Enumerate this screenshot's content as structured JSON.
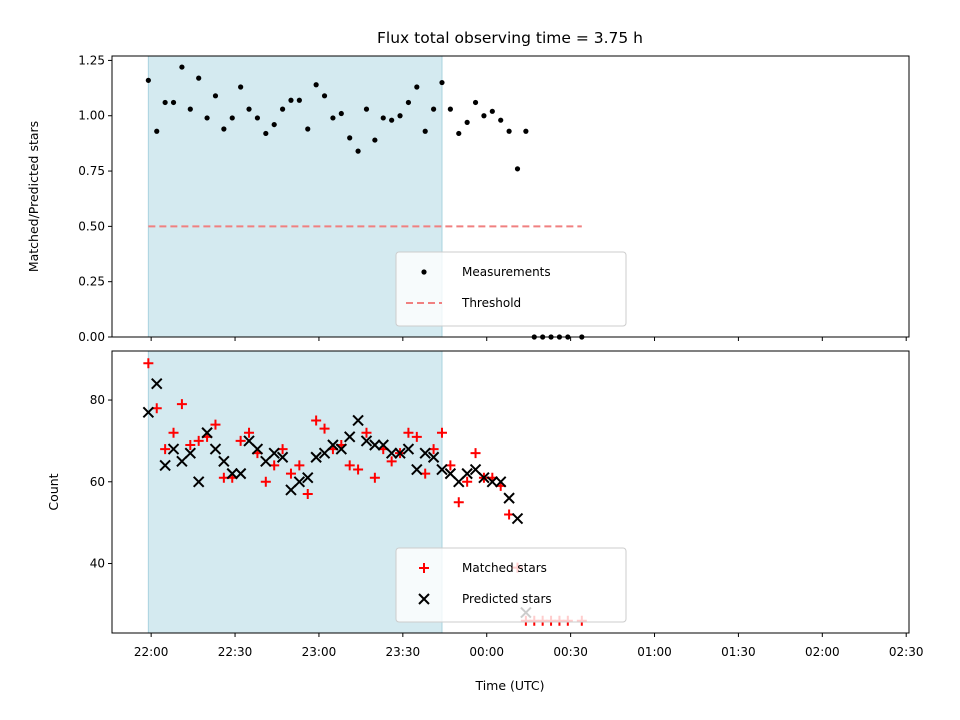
{
  "chart_data": {
    "title": "Flux total observing time = 3.75 h",
    "observing_window": [
      "21:59",
      "23:44"
    ],
    "x_ticks": [
      "22:00",
      "22:30",
      "23:00",
      "23:30",
      "00:00",
      "00:30",
      "01:00",
      "01:30",
      "02:00",
      "02:30"
    ],
    "x_range": [
      "21:46",
      "02:31"
    ],
    "x_label": "Time (UTC)",
    "colors": {
      "window": "#d4eaf0",
      "window_edge": "#a9d3df",
      "measurements": "#000000",
      "threshold": "#f08080",
      "matched": "#ff0000",
      "predicted": "#000000"
    },
    "panels": [
      {
        "type": "scatter",
        "ylabel": "Matched/Predicted stars",
        "ylim": [
          0,
          1.27
        ],
        "y_ticks": [
          "0.00",
          "0.25",
          "0.50",
          "0.75",
          "1.00",
          "1.25"
        ],
        "legend": {
          "position": "bottom-center"
        },
        "series": [
          {
            "name": "Measurements",
            "marker": "dot",
            "points": [
              [
                "21:59",
                1.16
              ],
              [
                "22:02",
                0.93
              ],
              [
                "22:05",
                1.06
              ],
              [
                "22:08",
                1.06
              ],
              [
                "22:11",
                1.22
              ],
              [
                "22:14",
                1.03
              ],
              [
                "22:17",
                1.17
              ],
              [
                "22:20",
                0.99
              ],
              [
                "22:23",
                1.09
              ],
              [
                "22:26",
                0.94
              ],
              [
                "22:29",
                0.99
              ],
              [
                "22:32",
                1.13
              ],
              [
                "22:35",
                1.03
              ],
              [
                "22:38",
                0.99
              ],
              [
                "22:41",
                0.92
              ],
              [
                "22:44",
                0.96
              ],
              [
                "22:47",
                1.03
              ],
              [
                "22:50",
                1.07
              ],
              [
                "22:53",
                1.07
              ],
              [
                "22:56",
                0.94
              ],
              [
                "22:59",
                1.14
              ],
              [
                "23:02",
                1.09
              ],
              [
                "23:05",
                0.99
              ],
              [
                "23:08",
                1.01
              ],
              [
                "23:11",
                0.9
              ],
              [
                "23:14",
                0.84
              ],
              [
                "23:17",
                1.03
              ],
              [
                "23:20",
                0.89
              ],
              [
                "23:23",
                0.99
              ],
              [
                "23:26",
                0.98
              ],
              [
                "23:29",
                1.0
              ],
              [
                "23:32",
                1.06
              ],
              [
                "23:35",
                1.13
              ],
              [
                "23:38",
                0.93
              ],
              [
                "23:41",
                1.03
              ],
              [
                "23:44",
                1.15
              ],
              [
                "23:47",
                1.03
              ],
              [
                "23:50",
                0.92
              ],
              [
                "23:53",
                0.97
              ],
              [
                "23:56",
                1.06
              ],
              [
                "23:59",
                1.0
              ],
              [
                "00:02",
                1.02
              ],
              [
                "00:05",
                0.98
              ],
              [
                "00:08",
                0.93
              ],
              [
                "00:11",
                0.76
              ],
              [
                "00:14",
                0.93
              ],
              [
                "00:17",
                0
              ],
              [
                "00:20",
                0
              ],
              [
                "00:23",
                0
              ],
              [
                "00:26",
                0
              ],
              [
                "00:29",
                0
              ],
              [
                "00:34",
                0
              ]
            ]
          },
          {
            "name": "Threshold",
            "style": "dashed",
            "points": [
              [
                "21:59",
                0.5
              ],
              [
                "00:34",
                0.5
              ]
            ]
          }
        ]
      },
      {
        "type": "scatter",
        "ylabel": "Count",
        "ylim": [
          23,
          92
        ],
        "y_ticks": [
          "40",
          "60",
          "80"
        ],
        "legend": {
          "position": "bottom-center"
        },
        "series": [
          {
            "name": "Matched stars",
            "marker": "plus",
            "points": [
              [
                "21:59",
                89
              ],
              [
                "22:02",
                78
              ],
              [
                "22:05",
                68
              ],
              [
                "22:08",
                72
              ],
              [
                "22:11",
                79
              ],
              [
                "22:14",
                69
              ],
              [
                "22:17",
                70
              ],
              [
                "22:20",
                71
              ],
              [
                "22:23",
                74
              ],
              [
                "22:26",
                61
              ],
              [
                "22:29",
                61
              ],
              [
                "22:32",
                70
              ],
              [
                "22:35",
                72
              ],
              [
                "22:38",
                67
              ],
              [
                "22:41",
                60
              ],
              [
                "22:44",
                64
              ],
              [
                "22:47",
                68
              ],
              [
                "22:50",
                62
              ],
              [
                "22:53",
                64
              ],
              [
                "22:56",
                57
              ],
              [
                "22:59",
                75
              ],
              [
                "23:02",
                73
              ],
              [
                "23:05",
                68
              ],
              [
                "23:08",
                69
              ],
              [
                "23:11",
                64
              ],
              [
                "23:14",
                63
              ],
              [
                "23:17",
                72
              ],
              [
                "23:20",
                61
              ],
              [
                "23:23",
                68
              ],
              [
                "23:26",
                65
              ],
              [
                "23:29",
                67
              ],
              [
                "23:32",
                72
              ],
              [
                "23:35",
                71
              ],
              [
                "23:38",
                62
              ],
              [
                "23:41",
                68
              ],
              [
                "23:44",
                72
              ],
              [
                "23:47",
                64
              ],
              [
                "23:50",
                55
              ],
              [
                "23:53",
                60
              ],
              [
                "23:56",
                67
              ],
              [
                "23:59",
                61
              ],
              [
                "00:02",
                61
              ],
              [
                "00:05",
                59
              ],
              [
                "00:08",
                52
              ],
              [
                "00:11",
                39
              ],
              [
                "00:14",
                26
              ],
              [
                "00:17",
                26
              ],
              [
                "00:20",
                26
              ],
              [
                "00:23",
                26
              ],
              [
                "00:26",
                26
              ],
              [
                "00:29",
                26
              ],
              [
                "00:34",
                26
              ]
            ]
          },
          {
            "name": "Predicted stars",
            "marker": "x",
            "points": [
              [
                "21:59",
                77
              ],
              [
                "22:02",
                84
              ],
              [
                "22:05",
                64
              ],
              [
                "22:08",
                68
              ],
              [
                "22:11",
                65
              ],
              [
                "22:14",
                67
              ],
              [
                "22:17",
                60
              ],
              [
                "22:20",
                72
              ],
              [
                "22:23",
                68
              ],
              [
                "22:26",
                65
              ],
              [
                "22:29",
                62
              ],
              [
                "22:32",
                62
              ],
              [
                "22:35",
                70
              ],
              [
                "22:38",
                68
              ],
              [
                "22:41",
                65
              ],
              [
                "22:44",
                67
              ],
              [
                "22:47",
                66
              ],
              [
                "22:50",
                58
              ],
              [
                "22:53",
                60
              ],
              [
                "22:56",
                61
              ],
              [
                "22:59",
                66
              ],
              [
                "23:02",
                67
              ],
              [
                "23:05",
                69
              ],
              [
                "23:08",
                68
              ],
              [
                "23:11",
                71
              ],
              [
                "23:14",
                75
              ],
              [
                "23:17",
                70
              ],
              [
                "23:20",
                69
              ],
              [
                "23:23",
                69
              ],
              [
                "23:26",
                67
              ],
              [
                "23:29",
                67
              ],
              [
                "23:32",
                68
              ],
              [
                "23:35",
                63
              ],
              [
                "23:38",
                67
              ],
              [
                "23:41",
                66
              ],
              [
                "23:44",
                63
              ],
              [
                "23:47",
                62
              ],
              [
                "23:50",
                60
              ],
              [
                "23:53",
                62
              ],
              [
                "23:56",
                63
              ],
              [
                "23:59",
                61
              ],
              [
                "00:02",
                60
              ],
              [
                "00:05",
                60
              ],
              [
                "00:08",
                56
              ],
              [
                "00:11",
                51
              ],
              [
                "00:14",
                28
              ]
            ]
          }
        ]
      }
    ]
  }
}
